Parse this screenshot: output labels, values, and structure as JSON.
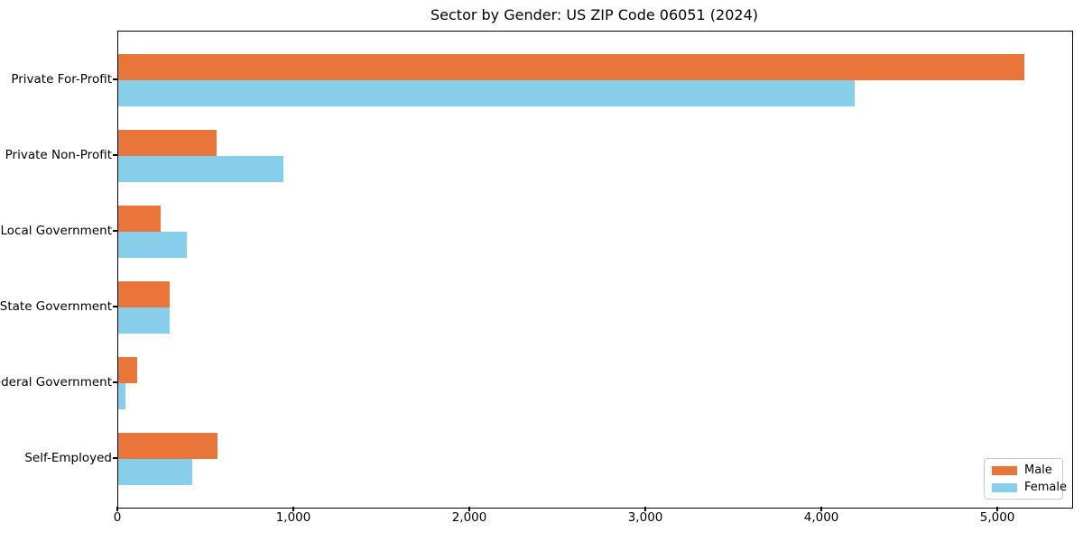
{
  "chart_data": {
    "type": "bar",
    "orientation": "horizontal",
    "title": "Sector by Gender: US ZIP Code 06051 (2024)",
    "categories": [
      "Private For-Profit",
      "Private Non-Profit",
      "Local Government",
      "State Government",
      "Federal Government",
      "Self-Employed"
    ],
    "series": [
      {
        "name": "Male",
        "color": "#e8763b",
        "values": [
          5150,
          560,
          240,
          290,
          110,
          565
        ]
      },
      {
        "name": "Female",
        "color": "#87ceeb",
        "values": [
          4185,
          940,
          390,
          290,
          40,
          420
        ]
      }
    ],
    "xlabel": "",
    "ylabel": "",
    "xlim": [
      0,
      5420
    ],
    "xticks": [
      0,
      1000,
      2000,
      3000,
      4000,
      5000
    ],
    "xtick_labels": [
      "0",
      "1,000",
      "2,000",
      "3,000",
      "4,000",
      "5,000"
    ],
    "grid": false,
    "legend_position": "lower right"
  },
  "colors": {
    "male": "#e8763b",
    "female": "#87ceeb",
    "frame": "#000000",
    "legend_border": "#c9c9c9",
    "background": "#ffffff"
  }
}
